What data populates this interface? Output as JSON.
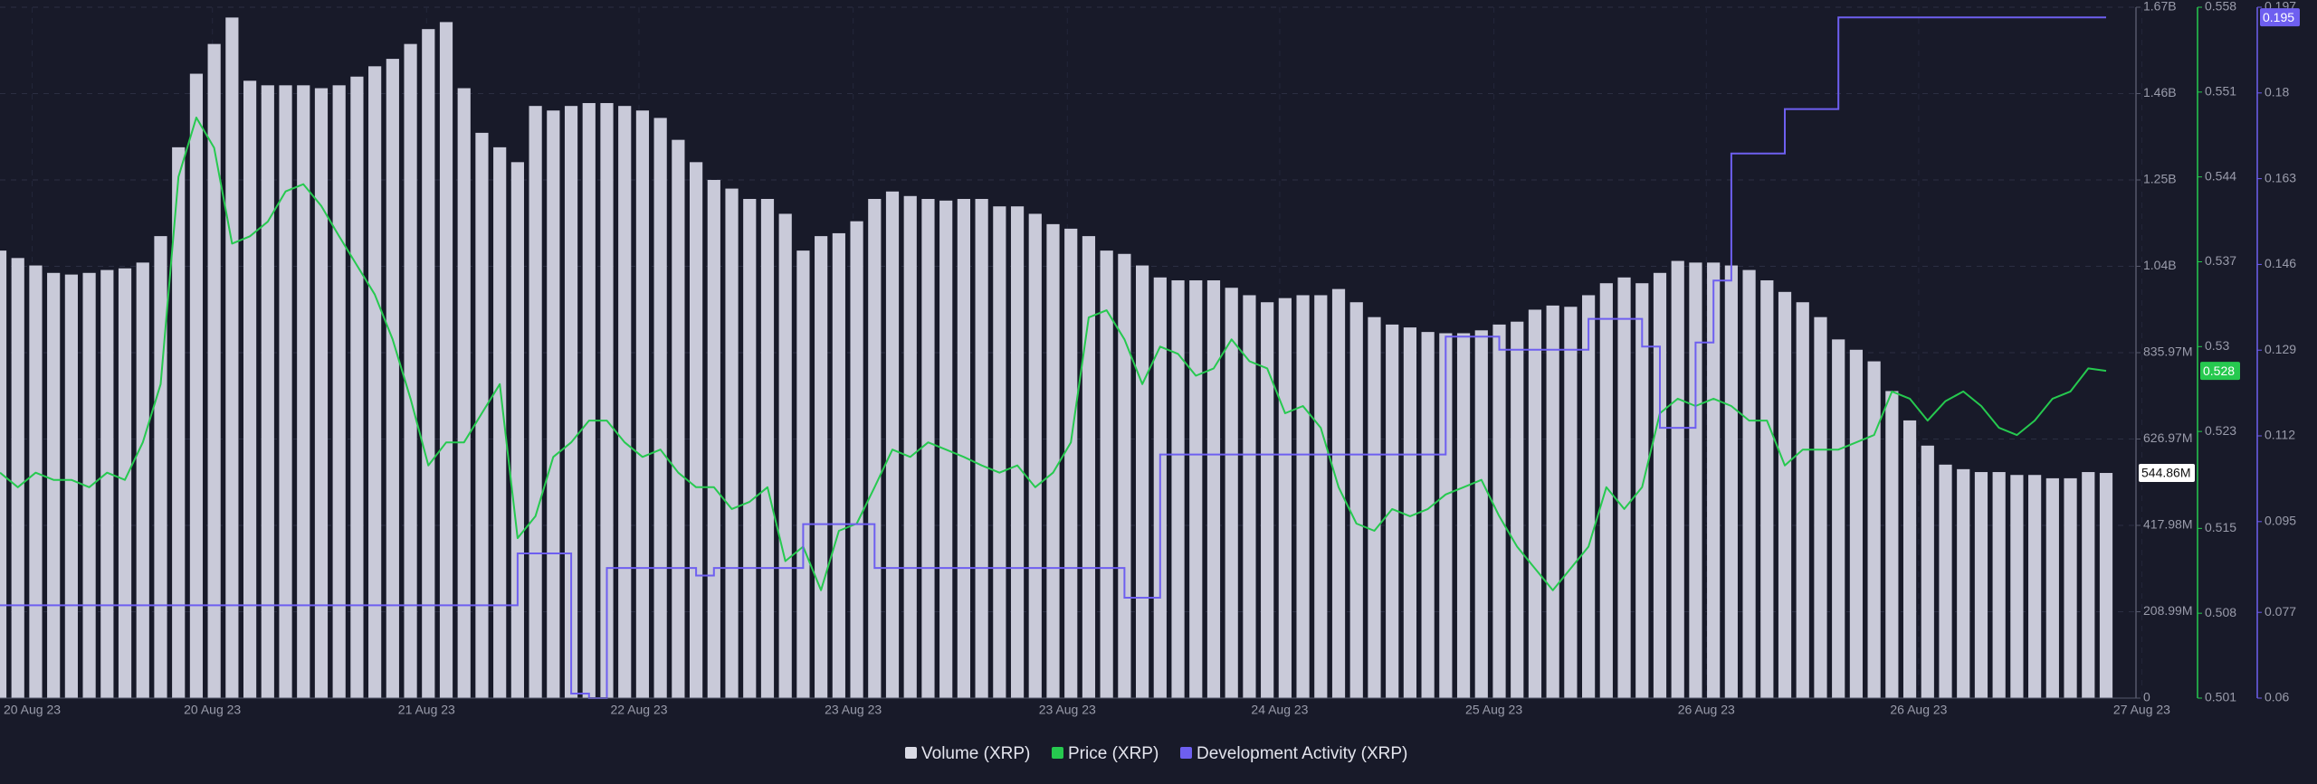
{
  "chart_data": {
    "type": "combo",
    "xlim": [
      0,
      118
    ],
    "xticks": [
      {
        "value": 1.8,
        "label": "20 Aug 23"
      },
      {
        "value": 11.9,
        "label": "20 Aug 23"
      },
      {
        "value": 23.9,
        "label": "21 Aug 23"
      },
      {
        "value": 35.8,
        "label": "22 Aug 23"
      },
      {
        "value": 47.8,
        "label": "23 Aug 23"
      },
      {
        "value": 59.8,
        "label": "23 Aug 23"
      },
      {
        "value": 71.7,
        "label": "24 Aug 23"
      },
      {
        "value": 83.7,
        "label": "25 Aug 23"
      },
      {
        "value": 95.6,
        "label": "26 Aug 23"
      },
      {
        "value": 107.5,
        "label": "26 Aug 23"
      },
      {
        "value": 120,
        "label": "27 Aug 23"
      }
    ],
    "ylim": [
      0,
      1671920000
    ],
    "yticks": [
      0,
      {
        "value": 208990000,
        "label": "208.99M"
      },
      {
        "value": 417980000,
        "label": "417.98M"
      },
      {
        "value": 626970000,
        "label": "626.97M"
      },
      {
        "value": 835970000,
        "label": "835.97M"
      },
      {
        "value": 1044950000,
        "label": "1.04B"
      },
      {
        "value": 1253940000,
        "label": "1.25B"
      },
      {
        "value": 1462930000,
        "label": "1.46B"
      },
      {
        "value": 1671920000,
        "label": "1.67B"
      }
    ],
    "y2lim": [
      0.501,
      0.558
    ],
    "y2ticks": [
      0.501,
      0.508,
      0.515,
      0.523,
      0.53,
      0.537,
      0.544,
      0.551,
      0.558
    ],
    "y3lim": [
      0.06,
      0.197
    ],
    "y3ticks": [
      0.06,
      0.077,
      0.095,
      0.112,
      0.129,
      0.146,
      0.163,
      0.18,
      0.197
    ],
    "grid": true,
    "legend": "bottom",
    "series": [
      {
        "name": "Volume (XRP)",
        "type": "bar",
        "axis": "y",
        "color": "#c9cad9",
        "last_label": "544.86M",
        "values": [
          1083000000.0,
          1065000000.0,
          1047000000.0,
          1029000000.0,
          1025000000.0,
          1029000000.0,
          1036000000.0,
          1040000000.0,
          1054000000.0,
          1118000000.0,
          1333000000.0,
          1511000000.0,
          1583000000.0,
          1647000000.0,
          1494000000.0,
          1483000000.0,
          1483000000.0,
          1483000000.0,
          1476000000.0,
          1483000000.0,
          1504000000.0,
          1529000000.0,
          1547000000.0,
          1583000000.0,
          1619000000.0,
          1636000000.0,
          1476000000.0,
          1368000000.0,
          1333000000.0,
          1297000000.0,
          1433000000.0,
          1422000000.0,
          1433000000.0,
          1440000000.0,
          1440000000.0,
          1433000000.0,
          1422000000.0,
          1404000000.0,
          1351000000.0,
          1297000000.0,
          1254000000.0,
          1233000000.0,
          1208000000.0,
          1208000000.0,
          1172000000.0,
          1083000000.0,
          1118000000.0,
          1125000000.0,
          1154000000.0,
          1208000000.0,
          1226000000.0,
          1215000000.0,
          1208000000.0,
          1204000000.0,
          1208000000.0,
          1208000000.0,
          1190000000.0,
          1190000000.0,
          1172000000.0,
          1147000000.0,
          1136000000.0,
          1118000000.0,
          1083000000.0,
          1075000000.0,
          1047000000.0,
          1018000000.0,
          1011000000.0,
          1011000000.0,
          1011000000.0,
          993000000.0,
          975000000.0,
          958000000.0,
          968000000.0,
          975000000.0,
          975000000.0,
          990000000.0,
          958000000.0,
          922000000.0,
          904000000.0,
          897000000.0,
          886000000.0,
          883000000.0,
          883000000.0,
          890000000.0,
          904000000.0,
          911000000.0,
          940000000.0,
          950000000.0,
          947000000.0,
          975000000.0,
          1004000000.0,
          1018000000.0,
          1004000000.0,
          1029000000.0,
          1058000000.0,
          1054000000.0,
          1054000000.0,
          1047000000.0,
          1036000000.0,
          1011000000.0,
          983000000.0,
          958000000.0,
          922000000.0,
          868000000.0,
          843000000.0,
          815000000.0,
          743000000.0,
          672000000.0,
          611000000.0,
          565000000.0,
          554000000.0,
          547000000.0,
          547000000.0,
          540000000.0,
          540000000.0,
          532000000.0,
          532000000.0,
          547000000.0,
          544860000.0
        ]
      },
      {
        "name": "Price (XRP)",
        "type": "line",
        "axis": "y2",
        "color": "#26c94f",
        "last_label": "0.528",
        "values": [
          0.5196,
          0.5184,
          0.5196,
          0.519,
          0.519,
          0.5184,
          0.5196,
          0.519,
          0.5221,
          0.5269,
          0.544,
          0.5489,
          0.5464,
          0.5385,
          0.5391,
          0.5403,
          0.5428,
          0.5434,
          0.5416,
          0.5391,
          0.5367,
          0.5343,
          0.5306,
          0.5257,
          0.5202,
          0.5221,
          0.5221,
          0.5245,
          0.5269,
          0.5142,
          0.516,
          0.5209,
          0.5221,
          0.5239,
          0.5239,
          0.5221,
          0.5209,
          0.5215,
          0.5196,
          0.5184,
          0.5184,
          0.5166,
          0.5172,
          0.5184,
          0.5123,
          0.5135,
          0.5099,
          0.5148,
          0.5154,
          0.5184,
          0.5215,
          0.5209,
          0.5221,
          0.5215,
          0.5209,
          0.5202,
          0.5196,
          0.5202,
          0.5184,
          0.5196,
          0.5221,
          0.5324,
          0.533,
          0.5306,
          0.5269,
          0.53,
          0.5294,
          0.5276,
          0.5282,
          0.5306,
          0.5288,
          0.5282,
          0.5245,
          0.5251,
          0.5233,
          0.5184,
          0.5154,
          0.5148,
          0.5166,
          0.516,
          0.5166,
          0.5178,
          0.5184,
          0.519,
          0.516,
          0.5135,
          0.5117,
          0.5099,
          0.5117,
          0.5135,
          0.5184,
          0.5166,
          0.5184,
          0.5245,
          0.5257,
          0.5251,
          0.5257,
          0.5251,
          0.5239,
          0.5239,
          0.5202,
          0.5215,
          0.5215,
          0.5215,
          0.5221,
          0.5227,
          0.5263,
          0.5257,
          0.5239,
          0.5255,
          0.5263,
          0.5251,
          0.5233,
          0.5227,
          0.5239,
          0.5257,
          0.5263,
          0.5282,
          0.528
        ]
      },
      {
        "name": "Development Activity (XRP)",
        "type": "step",
        "axis": "y3",
        "color": "#6e5ff0",
        "last_label": "0.195",
        "values": [
          0.0784,
          0.0784,
          0.0784,
          0.0784,
          0.0784,
          0.0784,
          0.0784,
          0.0784,
          0.0784,
          0.0784,
          0.0784,
          0.0784,
          0.0784,
          0.0784,
          0.0784,
          0.0784,
          0.0784,
          0.0784,
          0.0784,
          0.0784,
          0.0784,
          0.0784,
          0.0784,
          0.0784,
          0.0784,
          0.0784,
          0.0784,
          0.0784,
          0.0784,
          0.0887,
          0.0887,
          0.0887,
          0.0609,
          0.06,
          0.0858,
          0.0858,
          0.0858,
          0.0858,
          0.0858,
          0.0843,
          0.0858,
          0.0858,
          0.0858,
          0.0858,
          0.0858,
          0.0945,
          0.0945,
          0.0945,
          0.0945,
          0.0858,
          0.0858,
          0.0858,
          0.0858,
          0.0858,
          0.0858,
          0.0858,
          0.0858,
          0.0858,
          0.0858,
          0.0858,
          0.0858,
          0.0858,
          0.0858,
          0.0799,
          0.0799,
          0.1083,
          0.1083,
          0.1083,
          0.1083,
          0.1083,
          0.1083,
          0.1083,
          0.1083,
          0.1083,
          0.1083,
          0.1083,
          0.1083,
          0.1083,
          0.1083,
          0.1083,
          0.1083,
          0.1317,
          0.1317,
          0.1317,
          0.1291,
          0.1291,
          0.1291,
          0.1291,
          0.1291,
          0.1352,
          0.1352,
          0.1352,
          0.1297,
          0.1136,
          0.1136,
          0.1305,
          0.1428,
          0.168,
          0.168,
          0.168,
          0.1768,
          0.1768,
          0.1768,
          0.195,
          0.195,
          0.195,
          0.195,
          0.195,
          0.195,
          0.195,
          0.195,
          0.195,
          0.195,
          0.195,
          0.195,
          0.195,
          0.195,
          0.195,
          0.195
        ]
      }
    ]
  }
}
